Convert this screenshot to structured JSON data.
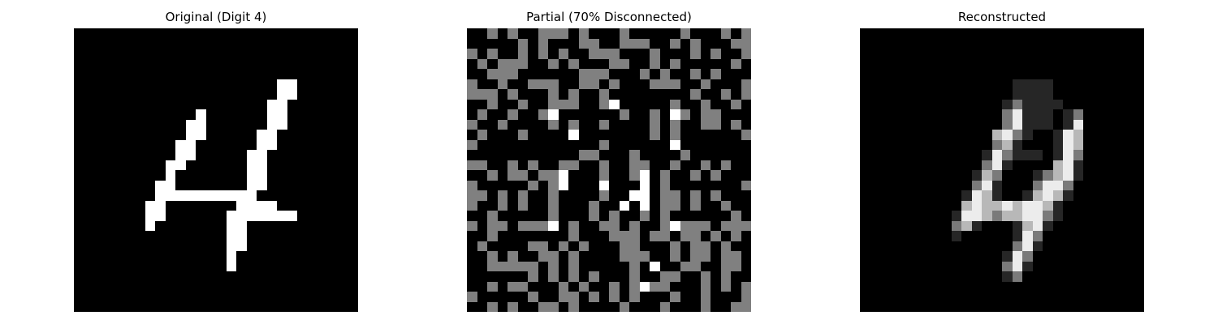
{
  "panels": [
    {
      "title": "Original (Digit 4)",
      "grid": [
        "............................",
        "............................",
        "............................",
        "............................",
        "............................",
        "....................##......",
        "....................##......",
        "...................##.......",
        "............#......##.......",
        "...........##......##.......",
        "...........##.....##........",
        "..........##......##........",
        "..........##.....##.........",
        ".........##......##.........",
        ".........#.......##.........",
        "........##.......##.........",
        "........##########..........",
        ".......##.......####........",
        ".......##......#######......",
        ".......#.......##...........",
        "...............##...........",
        "...............##...........",
        "...............#............",
        "...............#............",
        "............................",
        "............................",
        "............................",
        "............................"
      ]
    },
    {
      "title": "Partial (70% Disconnected)",
      "grid": [
        "..+.+..+++.+...+.....+...+.+",
        ".....+.+...++..+++..+.+...++",
        "+.+..+.+.+..+++...+...+.+..+",
        ".+.+++..+.+...++..+.+.....+.",
        "..+++......+++...+.+..+.+...",
        "+..+..+++..++.+...+++..+...+",
        "+++.+...+.+..+........+..+.+",
        "..+..+..+++..+#.....+..+..+.",
        ".+..+..+#......+..+.#+.++...",
        "+..+....+.+..+....+.+..++.+.",
        ".+...+....#.......+.+......+",
        "+............+......#.......",
        "...........++...+....+......",
        "++..+.+..++..+..++..+..+.+..",
        "..+.++.++#...+..+#.+..+.+...",
        "+.....+.+#...#...#.+.......+",
        "++.+.+..+....+..##.++.+.+...",
        "+..+.+..+...+..#.#.++.+..+..",
        "..+.....+...+.+..+.+......+.",
        "+.++.+++#.+..++.+..+#+++.+++",
        "..+.......+...+++.++.++.+.+.",
        ".+....++.+.+...++...+.++.+..",
        "..+.+..++.+....+++..+.++.++.",
        "..+++++.+.+.....+.#..++..++.",
        "......+.+.+.+...+..++..+.+..",
        "..+.++...+.+..+.+#++...+.+.+",
        "+.....+..++.+.+.+...+..+...+",
        "..+.+..++.+....+...+...+..++"
      ]
    },
    {
      "title": "Reconstructed",
      "grid": [
        "............................",
        "............................",
        "............................",
        "............................",
        "............................",
        "...............::::.........",
        "...............::::.........",
        "..............:*::::........",
        "..............*@:::.:*......",
        "..............*@:::.:@......",
        ".............%@*:..:@%......",
        ".............*%:...:@%......",
        "............:@*:::.:@*......",
        "............*@:....%@:......",
        "...........:%*...:*%@:......",
        "...........*@:...*@@*.......",
        "..........:@%:..:%@%:.......",
        "..........%@%%@%@@%:........",
        ".........:@@%*%%@@*:........",
        ".........*%:...:%@:.........",
        ".........:.....:@*..........",
        "...............*@:..........",
        "..............:@*...........",
        "..............*@:...........",
        "..............:*............",
        "............................",
        "............................",
        "............................"
      ]
    }
  ]
}
